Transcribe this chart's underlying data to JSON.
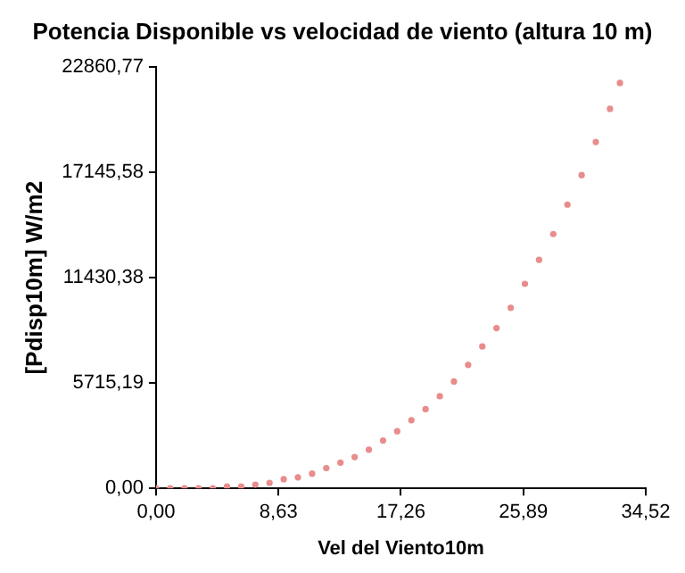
{
  "chart_data": {
    "type": "scatter",
    "title": "Potencia Disponible vs velocidad de viento (altura 10 m)",
    "xlabel": "Vel del Viento10m",
    "ylabel": "[Pdisp10m] W/m2",
    "x": [
      0,
      1,
      2,
      3,
      4,
      5,
      6,
      7,
      8,
      9,
      10,
      11,
      12,
      13,
      14,
      15,
      16,
      17,
      18,
      19,
      20,
      21,
      22,
      23,
      24,
      25,
      26,
      27,
      28,
      29,
      30,
      31,
      32,
      32.7
    ],
    "values": [
      0,
      0,
      0,
      0,
      0,
      100,
      100,
      200,
      300,
      500,
      600,
      800,
      1100,
      1400,
      1700,
      2100,
      2600,
      3100,
      3700,
      4300,
      5000,
      5800,
      6700,
      7700,
      8700,
      9800,
      11100,
      12400,
      13800,
      15400,
      17000,
      18800,
      20600,
      22000
    ],
    "color": "#e88c8c",
    "marker": "circle",
    "grid": false,
    "legend": false,
    "xlim": [
      0,
      34.52
    ],
    "xticks": [
      {
        "value": 0,
        "label": "0,00"
      },
      {
        "value": 8.63,
        "label": "8,63"
      },
      {
        "value": 17.26,
        "label": "17,26"
      },
      {
        "value": 25.89,
        "label": "25,89"
      },
      {
        "value": 34.52,
        "label": "34,52"
      }
    ],
    "ylim": [
      0,
      22860.77
    ],
    "yticks": [
      {
        "value": 0,
        "label": "0,00"
      },
      {
        "value": 5715.19,
        "label": "5715,19"
      },
      {
        "value": 11430.38,
        "label": "11430,38"
      },
      {
        "value": 17145.58,
        "label": "17145,58"
      },
      {
        "value": 22860.77,
        "label": "22860,77"
      }
    ]
  }
}
